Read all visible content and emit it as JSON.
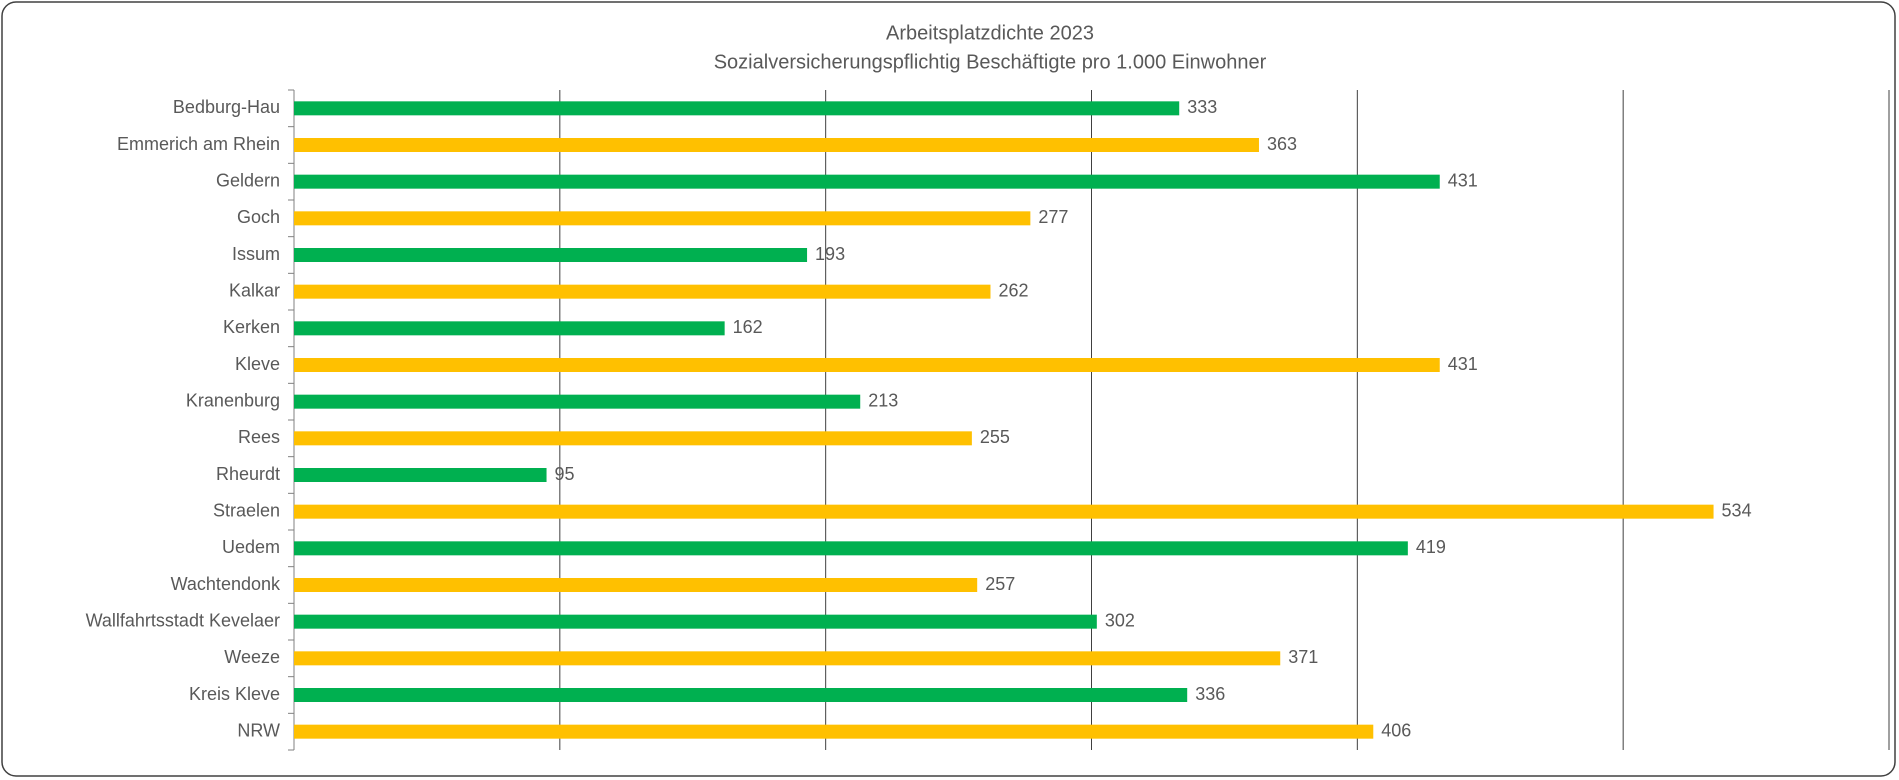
{
  "chart_data": {
    "type": "hbar",
    "title": "Arbeitsplatzdichte 2023",
    "subtitle": "Sozialversicherungspflichtig Beschäftigte pro 1.000 Einwohner",
    "categories": [
      "Bedburg-Hau",
      "Emmerich am Rhein",
      "Geldern",
      "Goch",
      "Issum",
      "Kalkar",
      "Kerken",
      "Kleve",
      "Kranenburg",
      "Rees",
      "Rheurdt",
      "Straelen",
      "Uedem",
      "Wachtendonk",
      "Wallfahrtsstadt Kevelaer",
      "Weeze",
      "Kreis Kleve",
      "NRW"
    ],
    "values": [
      333,
      363,
      431,
      277,
      193,
      262,
      162,
      431,
      213,
      255,
      95,
      534,
      419,
      257,
      302,
      371,
      336,
      406
    ],
    "colors": [
      "#00b050",
      "#ffc000",
      "#00b050",
      "#ffc000",
      "#00b050",
      "#ffc000",
      "#00b050",
      "#ffc000",
      "#00b050",
      "#ffc000",
      "#00b050",
      "#ffc000",
      "#00b050",
      "#ffc000",
      "#00b050",
      "#ffc000",
      "#00b050",
      "#ffc000"
    ],
    "xlim": [
      0,
      600
    ],
    "xticks": [
      0,
      100,
      200,
      300,
      400,
      500,
      600
    ],
    "grid": true
  }
}
